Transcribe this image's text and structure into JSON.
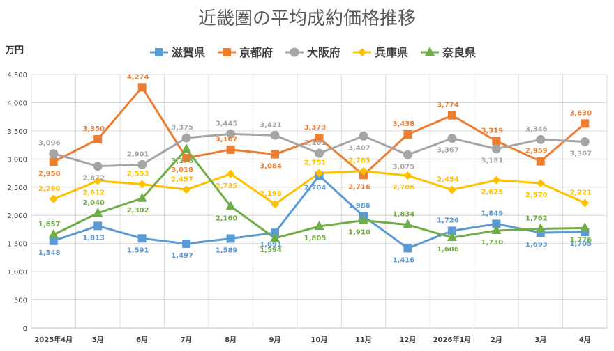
{
  "chart_data": {
    "type": "line",
    "title": "近畿圏の平均成約価格推移",
    "ylabel": "万円",
    "ylim": [
      0,
      4500
    ],
    "yticks": [
      "0",
      "500",
      "1,000",
      "1,500",
      "2,000",
      "2,500",
      "3,000",
      "3,500",
      "4,000",
      "4,500"
    ],
    "ytick_values": [
      0,
      500,
      1000,
      1500,
      2000,
      2500,
      3000,
      3500,
      4000,
      4500
    ],
    "categories": [
      "2025年4月",
      "5月",
      "6月",
      "7月",
      "8月",
      "9月",
      "10月",
      "11月",
      "12月",
      "2026年1月",
      "2月",
      "3月",
      "4月"
    ],
    "grid": true,
    "legend_position": "top",
    "series": [
      {
        "name": "滋賀県",
        "color": "#5B9BD5",
        "marker": "square",
        "values": [
          1548,
          1813,
          1591,
          1497,
          1589,
          1691,
          2704,
          1986,
          1416,
          1726,
          1849,
          1693,
          1705
        ],
        "labels": [
          "1,548",
          "1,813",
          "1,591",
          "1,497",
          "1,589",
          "1,691",
          "2,704",
          "1,986",
          "1,416",
          "1,726",
          "1,849",
          "1,693",
          "1,705"
        ]
      },
      {
        "name": "京都府",
        "color": "#ED7D31",
        "marker": "square",
        "values": [
          2950,
          3350,
          4274,
          3018,
          3167,
          3084,
          3373,
          2716,
          3438,
          3774,
          3319,
          2959,
          3630
        ],
        "labels": [
          "2,950",
          "3,350",
          "4,274",
          "3,018",
          "3,167",
          "3,084",
          "3,373",
          "2,716",
          "3,438",
          "3,774",
          "3,319",
          "2,959",
          "3,630"
        ]
      },
      {
        "name": "大阪府",
        "color": "#A5A5A5",
        "marker": "circle",
        "values": [
          3096,
          2872,
          2901,
          3375,
          3445,
          3421,
          3101,
          3407,
          3075,
          3367,
          3181,
          3346,
          3307
        ],
        "labels": [
          "3,096",
          "2,872",
          "2,901",
          "3,375",
          "3,445",
          "3,421",
          "3,101",
          "3,407",
          "3,075",
          "3,367",
          "3,181",
          "3,346",
          "3,307"
        ]
      },
      {
        "name": "兵庫県",
        "color": "#FFC000",
        "marker": "diamond",
        "values": [
          2290,
          2612,
          2553,
          2457,
          2735,
          2198,
          2751,
          2785,
          2706,
          2454,
          2625,
          2570,
          2221
        ],
        "labels": [
          "2,290",
          "2,612",
          "2,553",
          "2,457",
          "2,735",
          "2,198",
          "2,751",
          "2,785",
          "2,706",
          "2,454",
          "2,625",
          "2,570",
          "2,221"
        ]
      },
      {
        "name": "奈良県",
        "color": "#70AD47",
        "marker": "triangle",
        "values": [
          1657,
          2040,
          2302,
          3176,
          2160,
          1594,
          1805,
          1910,
          1834,
          1606,
          1730,
          1762,
          1776
        ],
        "labels": [
          "1,657",
          "2,040",
          "2,302",
          "3,176",
          "2,160",
          "1,594",
          "1,805",
          "1,910",
          "1,834",
          "1,606",
          "1,730",
          "1,762",
          "1,776"
        ]
      }
    ]
  }
}
